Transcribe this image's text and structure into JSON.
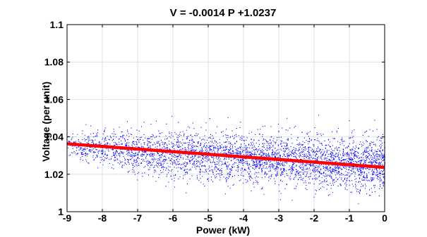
{
  "chart_data": {
    "type": "scatter",
    "title": "V = -0.0014 P +1.0237",
    "xlabel": "Power (kW)",
    "ylabel": "Voltage (per unit)",
    "xlim": [
      -9,
      0
    ],
    "ylim": [
      1,
      1.1
    ],
    "x_ticks": [
      -9,
      -8,
      -7,
      -6,
      -5,
      -4,
      -3,
      -2,
      -1,
      0
    ],
    "x_tick_labels": [
      "-9",
      "-8",
      "-7",
      "-6",
      "-5",
      "-4",
      "-3",
      "-2",
      "-1",
      "0"
    ],
    "y_ticks": [
      1,
      1.02,
      1.04,
      1.06,
      1.08,
      1.1
    ],
    "y_tick_labels": [
      "1",
      "1.02",
      "1.04",
      "1.06",
      "1.08",
      "1.1"
    ],
    "grid": true,
    "point_color": "#0000ff",
    "fit_line": {
      "slope": -0.0014,
      "intercept": 1.0237,
      "color": "#ff0000"
    },
    "scatter_envelope": [
      {
        "x": -9.0,
        "center": 1.036,
        "lower": 1.029,
        "upper": 1.042
      },
      {
        "x": -8.0,
        "center": 1.034,
        "lower": 1.024,
        "upper": 1.044
      },
      {
        "x": -7.0,
        "center": 1.032,
        "lower": 1.02,
        "upper": 1.046
      },
      {
        "x": -6.0,
        "center": 1.031,
        "lower": 1.017,
        "upper": 1.046
      },
      {
        "x": -5.0,
        "center": 1.03,
        "lower": 1.016,
        "upper": 1.045
      },
      {
        "x": -4.0,
        "center": 1.029,
        "lower": 1.015,
        "upper": 1.044
      },
      {
        "x": -3.0,
        "center": 1.028,
        "lower": 1.014,
        "upper": 1.043
      },
      {
        "x": -2.0,
        "center": 1.027,
        "lower": 1.012,
        "upper": 1.042
      },
      {
        "x": -1.0,
        "center": 1.026,
        "lower": 1.01,
        "upper": 1.041
      },
      {
        "x": 0.0,
        "center": 1.025,
        "lower": 1.007,
        "upper": 1.041
      }
    ]
  }
}
